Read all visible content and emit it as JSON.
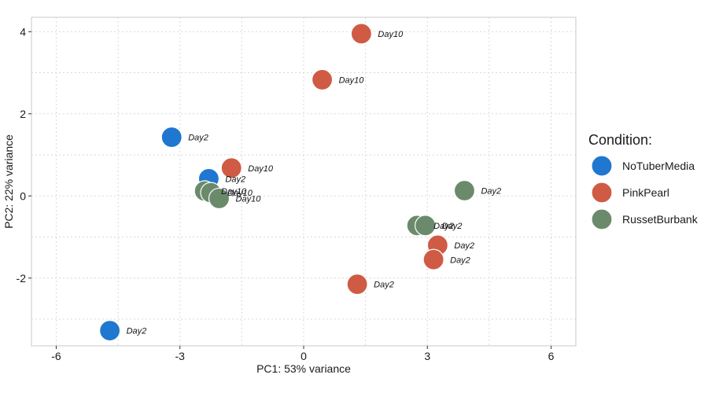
{
  "chart_data": {
    "type": "scatter",
    "xlabel": "PC1: 53% variance",
    "ylabel": "PC2: 22% variance",
    "xlim": [
      -6.6,
      6.6
    ],
    "ylim": [
      -3.65,
      4.35
    ],
    "x_ticks": [
      -6,
      -3,
      0,
      3,
      6
    ],
    "y_ticks": [
      -2,
      0,
      2,
      4
    ],
    "grid": true,
    "legend": {
      "title": "Condition:",
      "position": "right",
      "entries": [
        {
          "name": "NoTuberMedia",
          "color": "#1f77d0"
        },
        {
          "name": "PinkPearl",
          "color": "#cf5b44"
        },
        {
          "name": "RussetBurbank",
          "color": "#6b8a6b"
        }
      ]
    },
    "series": [
      {
        "name": "NoTuberMedia",
        "color": "#1f77d0",
        "points": [
          {
            "x": -3.2,
            "y": 1.43,
            "label": "Day2"
          },
          {
            "x": -2.3,
            "y": 0.42,
            "label": "Day2"
          },
          {
            "x": -4.7,
            "y": -3.28,
            "label": "Day2"
          }
        ]
      },
      {
        "name": "PinkPearl",
        "color": "#cf5b44",
        "points": [
          {
            "x": 1.4,
            "y": 3.95,
            "label": "Day10"
          },
          {
            "x": 0.45,
            "y": 2.83,
            "label": "Day10"
          },
          {
            "x": -1.75,
            "y": 0.68,
            "label": "Day10"
          },
          {
            "x": 3.25,
            "y": -1.2,
            "label": "Day2"
          },
          {
            "x": 3.15,
            "y": -1.55,
            "label": "Day2"
          },
          {
            "x": 1.3,
            "y": -2.15,
            "label": "Day2"
          }
        ]
      },
      {
        "name": "RussetBurbank",
        "color": "#6b8a6b",
        "points": [
          {
            "x": 3.9,
            "y": 0.13,
            "label": "Day2"
          },
          {
            "x": 2.75,
            "y": -0.72,
            "label": "Day2"
          },
          {
            "x": 2.95,
            "y": -0.72,
            "label": "Day2"
          },
          {
            "x": -2.4,
            "y": 0.12,
            "label": "Day10"
          },
          {
            "x": -2.25,
            "y": 0.08,
            "label": "Day10"
          },
          {
            "x": -2.05,
            "y": -0.06,
            "label": "Day10"
          }
        ]
      }
    ]
  }
}
